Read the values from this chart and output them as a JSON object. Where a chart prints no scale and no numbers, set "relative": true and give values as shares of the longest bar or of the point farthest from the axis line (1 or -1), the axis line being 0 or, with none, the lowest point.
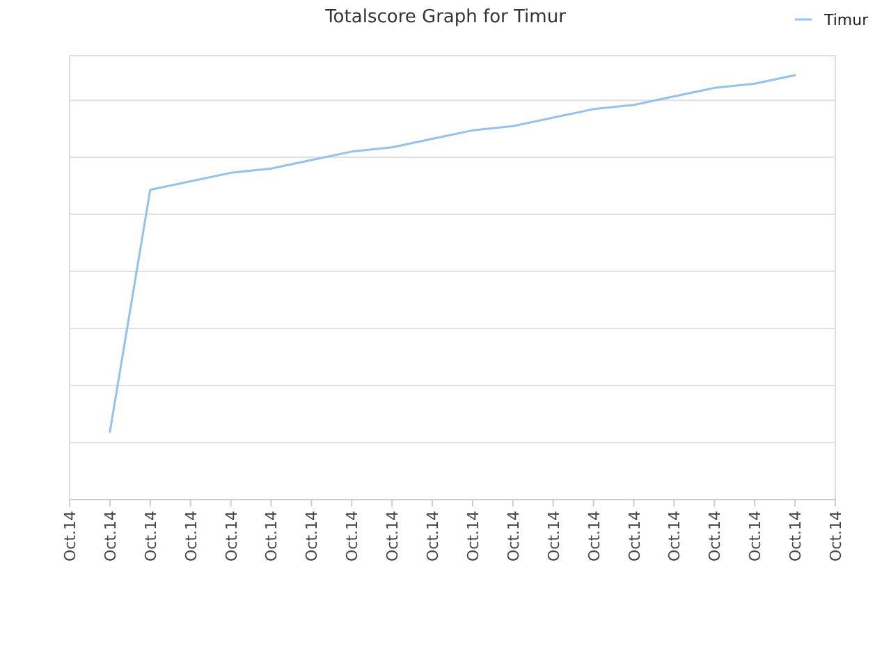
{
  "chart_data": {
    "type": "line",
    "title": "Totalscore Graph for Timur",
    "relative": true,
    "categories": [
      "Oct.14",
      "Oct.14",
      "Oct.14",
      "Oct.14",
      "Oct.14",
      "Oct.14",
      "Oct.14",
      "Oct.14",
      "Oct.14",
      "Oct.14",
      "Oct.14",
      "Oct.14",
      "Oct.14",
      "Oct.14",
      "Oct.14",
      "Oct.14",
      "Oct.14",
      "Oct.14",
      "Oct.14",
      "Oct.14"
    ],
    "series": [
      {
        "name": "Timur",
        "color": "#90c3f0",
        "values": [
          null,
          0.16,
          0.73,
          0.75,
          0.77,
          0.78,
          0.8,
          0.82,
          0.83,
          0.85,
          0.87,
          0.88,
          0.9,
          0.92,
          0.93,
          0.95,
          0.97,
          0.98,
          1,
          null
        ]
      }
    ],
    "grid": "y",
    "legend": "top right",
    "marker": "none",
    "line_style": "solid"
  }
}
